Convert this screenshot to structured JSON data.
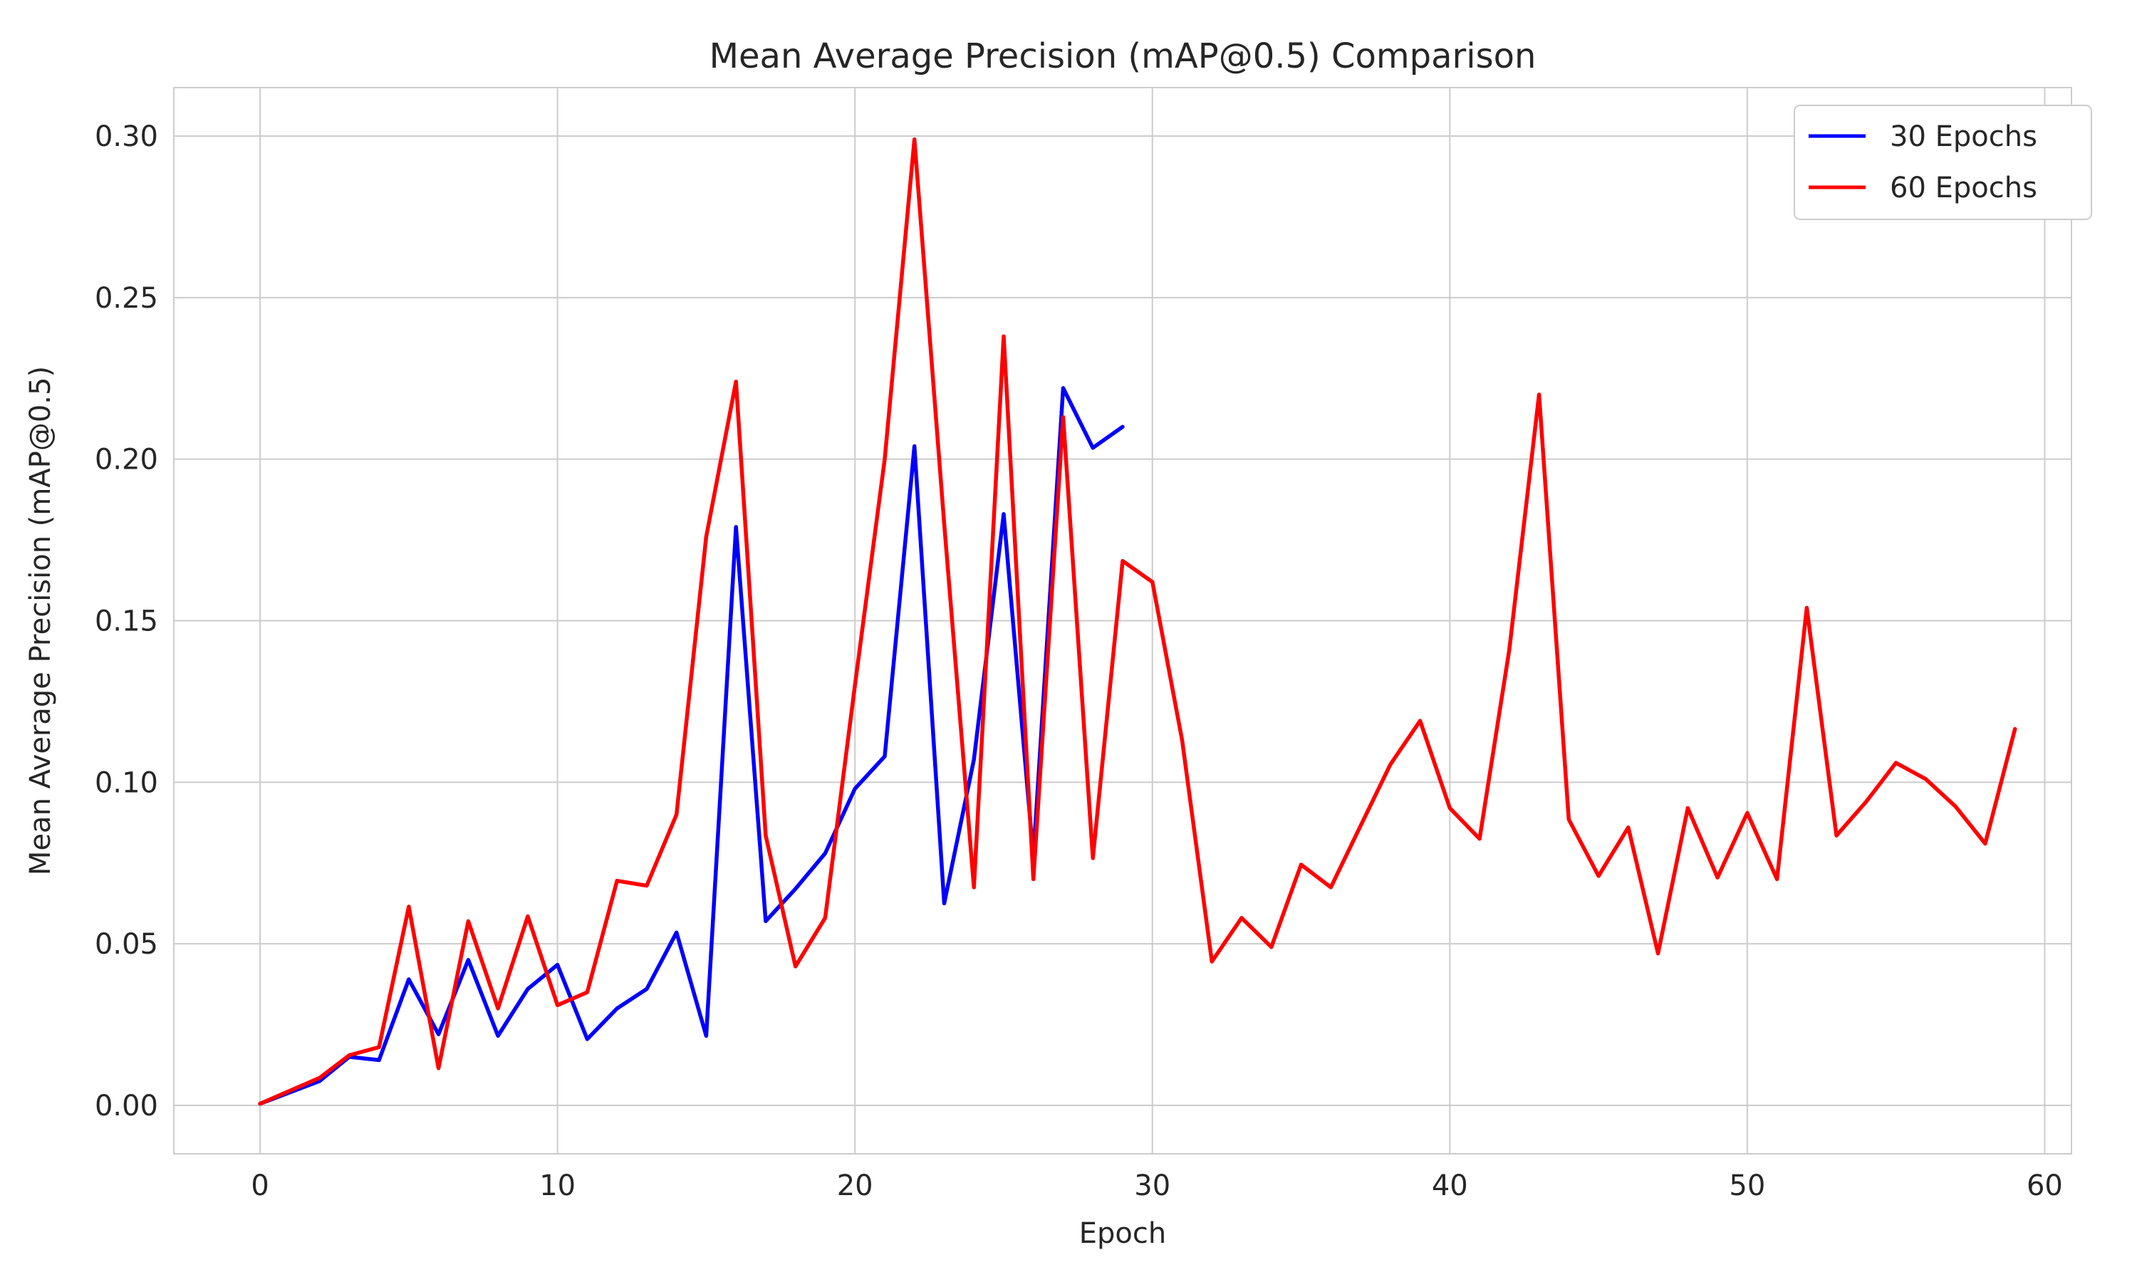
{
  "chart_data": {
    "type": "line",
    "title": "Mean Average Precision (mAP@0.5) Comparison",
    "xlabel": "Epoch",
    "ylabel": "Mean Average Precision (mAP@0.5)",
    "xlim": [
      -2.9,
      60.9
    ],
    "ylim": [
      -0.015,
      0.315
    ],
    "xticks": [
      0,
      10,
      20,
      30,
      40,
      50,
      60
    ],
    "xtick_labels": [
      "0",
      "10",
      "20",
      "30",
      "40",
      "50",
      "60"
    ],
    "yticks": [
      0.0,
      0.05,
      0.1,
      0.15,
      0.2,
      0.25,
      0.3
    ],
    "ytick_labels": [
      "0.00",
      "0.05",
      "0.10",
      "0.15",
      "0.20",
      "0.25",
      "0.30"
    ],
    "grid": true,
    "legend_position": "top-right",
    "series": [
      {
        "name": "30 Epochs",
        "color": "#0000ff",
        "x": [
          0,
          1,
          2,
          3,
          4,
          5,
          6,
          7,
          8,
          9,
          10,
          11,
          12,
          13,
          14,
          15,
          16,
          17,
          18,
          19,
          20,
          21,
          22,
          23,
          24,
          25,
          26,
          27,
          28,
          29
        ],
        "values": [
          0.0005,
          0.004,
          0.0075,
          0.015,
          0.014,
          0.039,
          0.022,
          0.045,
          0.0215,
          0.036,
          0.0435,
          0.0205,
          0.03,
          0.036,
          0.0535,
          0.0215,
          0.179,
          0.057,
          0.067,
          0.078,
          0.098,
          0.108,
          0.204,
          0.0625,
          0.107,
          0.183,
          0.077,
          0.222,
          0.2035,
          0.21
        ]
      },
      {
        "name": "60 Epochs",
        "color": "#ff0000",
        "x": [
          0,
          1,
          2,
          3,
          4,
          5,
          6,
          7,
          8,
          9,
          10,
          11,
          12,
          13,
          14,
          15,
          16,
          17,
          18,
          19,
          20,
          21,
          22,
          23,
          24,
          25,
          26,
          27,
          28,
          29,
          30,
          31,
          32,
          33,
          34,
          35,
          36,
          37,
          38,
          39,
          40,
          41,
          42,
          43,
          44,
          45,
          46,
          47,
          48,
          49,
          50,
          51,
          52,
          53,
          54,
          55,
          56,
          57,
          58,
          59
        ],
        "values": [
          0.0005,
          0.0045,
          0.0085,
          0.0155,
          0.018,
          0.0615,
          0.0115,
          0.057,
          0.03,
          0.0585,
          0.031,
          0.035,
          0.0695,
          0.068,
          0.09,
          0.176,
          0.224,
          0.0835,
          0.043,
          0.058,
          0.13,
          0.2,
          0.299,
          0.18,
          0.0675,
          0.238,
          0.07,
          0.213,
          0.0765,
          0.1685,
          0.162,
          0.113,
          0.0445,
          0.058,
          0.049,
          0.0745,
          0.0675,
          0.0865,
          0.1055,
          0.119,
          0.092,
          0.0825,
          0.141,
          0.22,
          0.0885,
          0.071,
          0.086,
          0.047,
          0.092,
          0.0705,
          0.0905,
          0.07,
          0.154,
          0.0835,
          0.094,
          0.106,
          0.101,
          0.0925,
          0.081,
          0.1165
        ]
      }
    ]
  }
}
